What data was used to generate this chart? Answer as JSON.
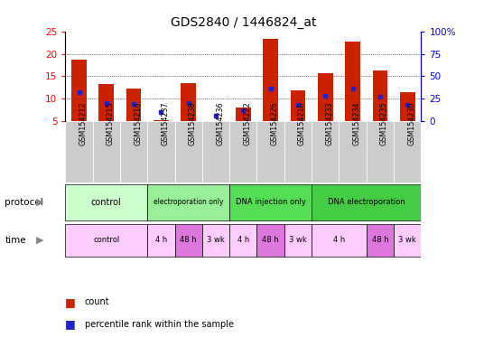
{
  "title": "GDS2840 / 1446824_at",
  "samples": [
    "GSM154212",
    "GSM154215",
    "GSM154216",
    "GSM154237",
    "GSM154238",
    "GSM154236",
    "GSM154222",
    "GSM154226",
    "GSM154218",
    "GSM154233",
    "GSM154234",
    "GSM154235",
    "GSM154230"
  ],
  "count_values": [
    18.8,
    13.3,
    12.3,
    5.3,
    13.4,
    5.1,
    8.1,
    23.4,
    11.8,
    15.7,
    22.8,
    16.3,
    11.5
  ],
  "percentile_values": [
    11.4,
    9.0,
    8.9,
    7.0,
    9.0,
    6.3,
    7.5,
    12.3,
    8.7,
    10.6,
    12.2,
    10.5,
    8.6
  ],
  "y_min": 5,
  "y_max": 25,
  "y_ticks_left": [
    5,
    10,
    15,
    20,
    25
  ],
  "right_tick_positions": [
    5,
    10,
    15,
    20,
    25
  ],
  "right_tick_labels": [
    "0",
    "25",
    "50",
    "75",
    "100%"
  ],
  "bar_color": "#cc2200",
  "percentile_color": "#2222cc",
  "bg_color": "#ffffff",
  "label_bg_color": "#cccccc",
  "protocol_groups": [
    {
      "label": "control",
      "start": 0,
      "end": 3,
      "color": "#ccffcc",
      "fontsize": 7
    },
    {
      "label": "electroporation only",
      "start": 3,
      "end": 6,
      "color": "#99ee99",
      "fontsize": 6
    },
    {
      "label": "DNA injection only",
      "start": 6,
      "end": 9,
      "color": "#55dd55",
      "fontsize": 6.5
    },
    {
      "label": "DNA electroporation",
      "start": 9,
      "end": 13,
      "color": "#44cc44",
      "fontsize": 6.5
    }
  ],
  "time_groups": [
    {
      "label": "control",
      "start": 0,
      "end": 3,
      "color": "#ffccff"
    },
    {
      "label": "4 h",
      "start": 3,
      "end": 4,
      "color": "#ffccff"
    },
    {
      "label": "48 h",
      "start": 4,
      "end": 5,
      "color": "#dd77dd"
    },
    {
      "label": "3 wk",
      "start": 5,
      "end": 6,
      "color": "#ffccff"
    },
    {
      "label": "4 h",
      "start": 6,
      "end": 7,
      "color": "#ffccff"
    },
    {
      "label": "48 h",
      "start": 7,
      "end": 8,
      "color": "#dd77dd"
    },
    {
      "label": "3 wk",
      "start": 8,
      "end": 9,
      "color": "#ffccff"
    },
    {
      "label": "4 h",
      "start": 9,
      "end": 11,
      "color": "#ffccff"
    },
    {
      "label": "48 h",
      "start": 11,
      "end": 12,
      "color": "#dd77dd"
    },
    {
      "label": "3 wk",
      "start": 12,
      "end": 13,
      "color": "#ffccff"
    }
  ],
  "legend_count_label": "count",
  "legend_percentile_label": "percentile rank within the sample"
}
